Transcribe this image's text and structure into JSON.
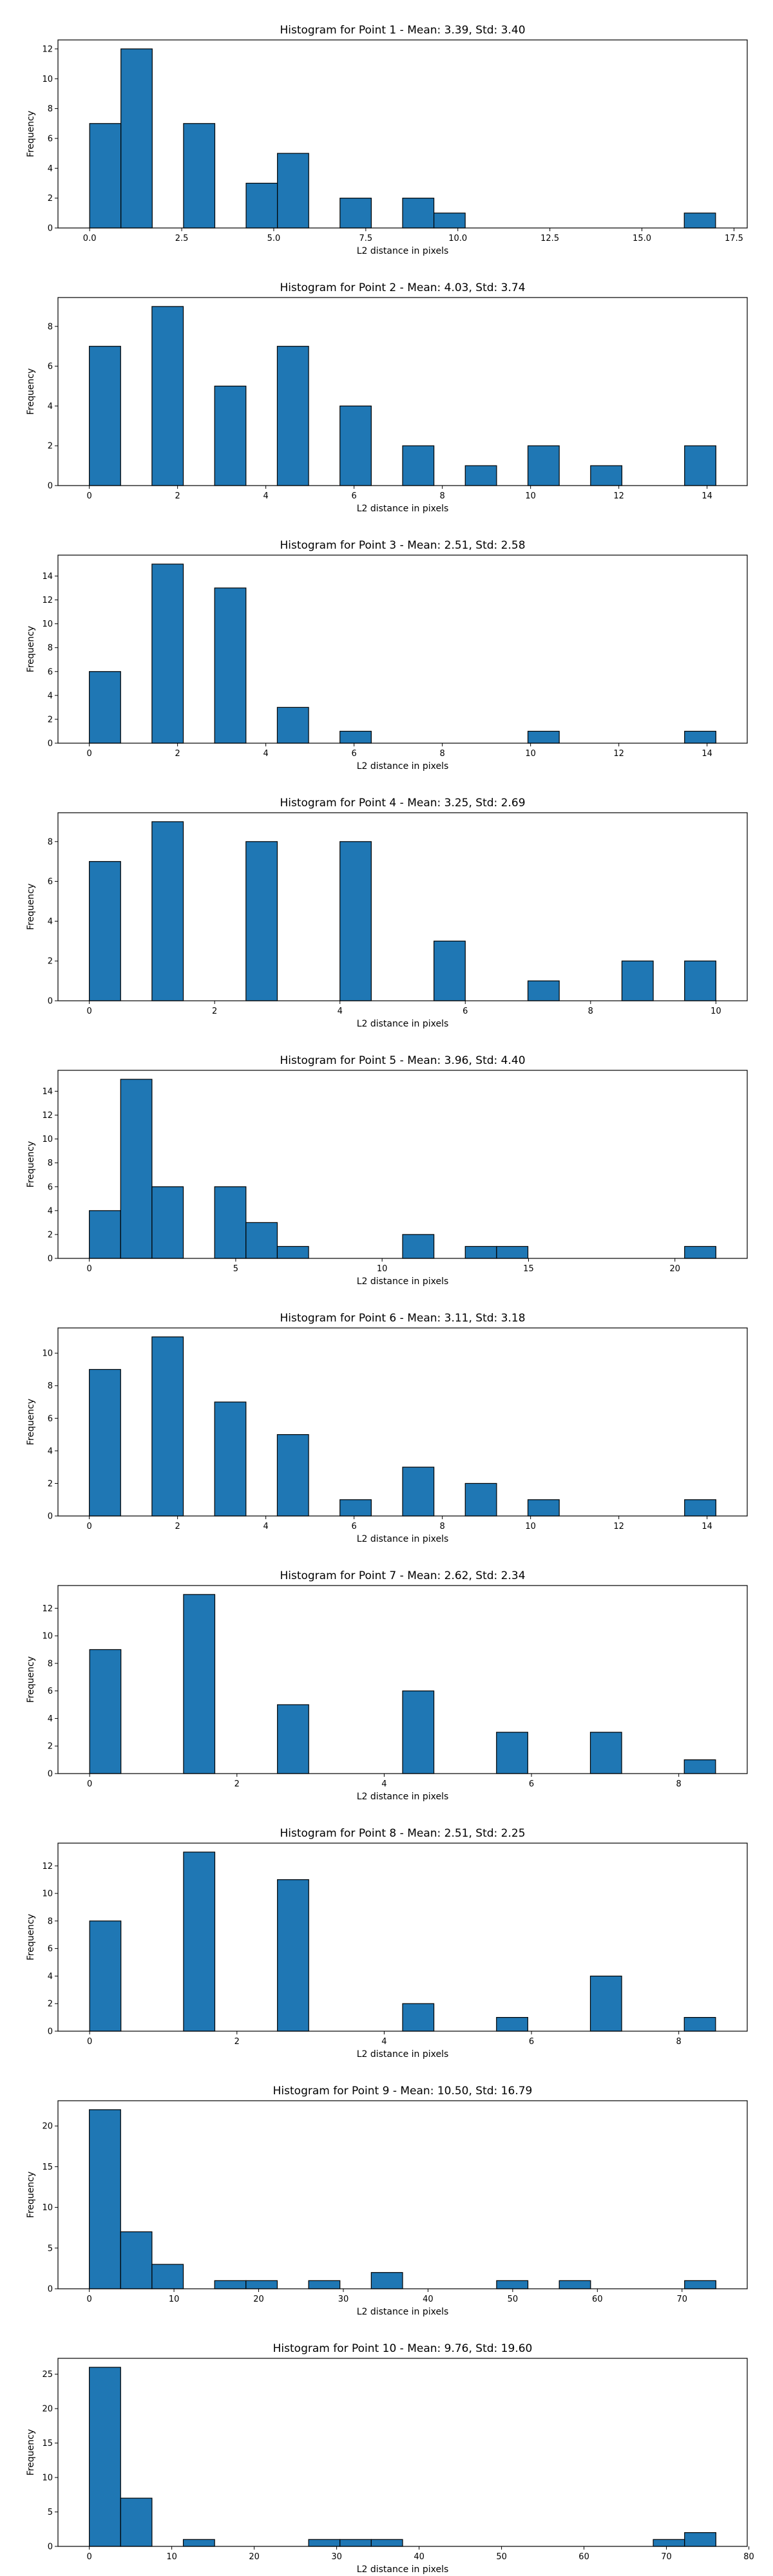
{
  "chart_data": [
    {
      "type": "bar",
      "title": "Histogram for Point 1 - Mean: 3.39, Std: 3.40",
      "xlabel": "L2 distance in pixels",
      "ylabel": "Frequency",
      "xlim": [
        -0.86,
        17.86
      ],
      "ylim": [
        0,
        12.6
      ],
      "xticks": [
        0,
        2.5,
        5,
        7.5,
        10,
        12.5,
        15,
        17.5
      ],
      "xtick_labels": [
        "0.0",
        "2.5",
        "5.0",
        "7.5",
        "10.0",
        "12.5",
        "15.0",
        "17.5"
      ],
      "yticks": [
        0,
        2,
        4,
        6,
        8,
        10,
        12
      ],
      "bin_edges": [
        0,
        0.85,
        1.7,
        2.55,
        3.4,
        4.25,
        5.1,
        5.95,
        6.8,
        7.65,
        8.5,
        9.35,
        10.2,
        11.05,
        11.9,
        12.75,
        13.6,
        14.45,
        15.3,
        16.15,
        17.0
      ],
      "values": [
        7,
        12,
        0,
        7,
        0,
        3,
        5,
        0,
        2,
        0,
        2,
        1,
        0,
        0,
        0,
        0,
        0,
        0,
        0,
        1
      ]
    },
    {
      "type": "bar",
      "title": "Histogram for Point 2 - Mean: 4.03, Std: 3.74",
      "xlabel": "L2 distance in pixels",
      "ylabel": "Frequency",
      "xlim": [
        -0.71,
        14.91
      ],
      "ylim": [
        0,
        9.45
      ],
      "xticks": [
        0,
        2,
        4,
        6,
        8,
        10,
        12,
        14
      ],
      "xtick_labels": [
        "0",
        "2",
        "4",
        "6",
        "8",
        "10",
        "12",
        "14"
      ],
      "yticks": [
        0,
        2,
        4,
        6,
        8
      ],
      "bin_edges": [
        0,
        0.71,
        1.42,
        2.13,
        2.84,
        3.55,
        4.26,
        4.97,
        5.68,
        6.39,
        7.1,
        7.81,
        8.52,
        9.23,
        9.94,
        10.65,
        11.36,
        12.07,
        12.78,
        13.49,
        14.2
      ],
      "values": [
        7,
        0,
        9,
        0,
        5,
        0,
        7,
        0,
        4,
        0,
        2,
        0,
        1,
        0,
        2,
        0,
        1,
        0,
        0,
        2
      ]
    },
    {
      "type": "bar",
      "title": "Histogram for Point 3 - Mean: 2.51, Std: 2.58",
      "xlabel": "L2 distance in pixels",
      "ylabel": "Frequency",
      "xlim": [
        -0.71,
        14.91
      ],
      "ylim": [
        0,
        15.75
      ],
      "xticks": [
        0,
        2,
        4,
        6,
        8,
        10,
        12,
        14
      ],
      "xtick_labels": [
        "0",
        "2",
        "4",
        "6",
        "8",
        "10",
        "12",
        "14"
      ],
      "yticks": [
        0,
        2,
        4,
        6,
        8,
        10,
        12,
        14
      ],
      "bin_edges": [
        0,
        0.71,
        1.42,
        2.13,
        2.84,
        3.55,
        4.26,
        4.97,
        5.68,
        6.39,
        7.1,
        7.81,
        8.52,
        9.23,
        9.94,
        10.65,
        11.36,
        12.07,
        12.78,
        13.49,
        14.2
      ],
      "values": [
        6,
        0,
        15,
        0,
        13,
        0,
        3,
        0,
        1,
        0,
        0,
        0,
        0,
        0,
        1,
        0,
        0,
        0,
        0,
        1
      ]
    },
    {
      "type": "bar",
      "title": "Histogram for Point 4 - Mean: 3.25, Std: 2.69",
      "xlabel": "L2 distance in pixels",
      "ylabel": "Frequency",
      "xlim": [
        -0.5,
        10.5
      ],
      "ylim": [
        0,
        9.45
      ],
      "xticks": [
        0,
        2,
        4,
        6,
        8,
        10
      ],
      "xtick_labels": [
        "0",
        "2",
        "4",
        "6",
        "8",
        "10"
      ],
      "yticks": [
        0,
        2,
        4,
        6,
        8
      ],
      "bin_edges": [
        0,
        0.5,
        1.0,
        1.5,
        2.0,
        2.5,
        3.0,
        3.5,
        4.0,
        4.5,
        5.0,
        5.5,
        6.0,
        6.5,
        7.0,
        7.5,
        8.0,
        8.5,
        9.0,
        9.5,
        10.0
      ],
      "values": [
        7,
        0,
        9,
        0,
        0,
        8,
        0,
        0,
        8,
        0,
        0,
        3,
        0,
        0,
        1,
        0,
        0,
        2,
        0,
        2
      ]
    },
    {
      "type": "bar",
      "title": "Histogram for Point 5 - Mean: 3.96, Std: 4.40",
      "xlabel": "L2 distance in pixels",
      "ylabel": "Frequency",
      "xlim": [
        -1.07,
        22.47
      ],
      "ylim": [
        0,
        15.75
      ],
      "xticks": [
        0,
        5,
        10,
        15,
        20
      ],
      "xtick_labels": [
        "0",
        "5",
        "10",
        "15",
        "20"
      ],
      "yticks": [
        0,
        2,
        4,
        6,
        8,
        10,
        12,
        14
      ],
      "bin_edges": [
        0,
        1.07,
        2.14,
        3.21,
        4.28,
        5.35,
        6.42,
        7.49,
        8.56,
        9.63,
        10.7,
        11.77,
        12.84,
        13.91,
        14.98,
        16.05,
        17.12,
        18.19,
        19.26,
        20.33,
        21.4
      ],
      "values": [
        4,
        15,
        6,
        0,
        6,
        3,
        1,
        0,
        0,
        0,
        2,
        0,
        1,
        1,
        0,
        0,
        0,
        0,
        0,
        1
      ]
    },
    {
      "type": "bar",
      "title": "Histogram for Point 6 - Mean: 3.11, Std: 3.18",
      "xlabel": "L2 distance in pixels",
      "ylabel": "Frequency",
      "xlim": [
        -0.71,
        14.91
      ],
      "ylim": [
        0,
        11.55
      ],
      "xticks": [
        0,
        2,
        4,
        6,
        8,
        10,
        12,
        14
      ],
      "xtick_labels": [
        "0",
        "2",
        "4",
        "6",
        "8",
        "10",
        "12",
        "14"
      ],
      "yticks": [
        0,
        2,
        4,
        6,
        8,
        10
      ],
      "bin_edges": [
        0,
        0.71,
        1.42,
        2.13,
        2.84,
        3.55,
        4.26,
        4.97,
        5.68,
        6.39,
        7.1,
        7.81,
        8.52,
        9.23,
        9.94,
        10.65,
        11.36,
        12.07,
        12.78,
        13.49,
        14.2
      ],
      "values": [
        9,
        0,
        11,
        0,
        7,
        0,
        5,
        0,
        1,
        0,
        3,
        0,
        2,
        0,
        1,
        0,
        0,
        0,
        0,
        1
      ]
    },
    {
      "type": "bar",
      "title": "Histogram for Point 7 - Mean: 2.62, Std: 2.34",
      "xlabel": "L2 distance in pixels",
      "ylabel": "Frequency",
      "xlim": [
        -0.43,
        8.93
      ],
      "ylim": [
        0,
        13.65
      ],
      "xticks": [
        0,
        2,
        4,
        6,
        8
      ],
      "xtick_labels": [
        "0",
        "2",
        "4",
        "6",
        "8"
      ],
      "yticks": [
        0,
        2,
        4,
        6,
        8,
        10,
        12
      ],
      "bin_edges": [
        0,
        0.425,
        0.85,
        1.275,
        1.7,
        2.125,
        2.55,
        2.975,
        3.4,
        3.825,
        4.25,
        4.675,
        5.1,
        5.525,
        5.95,
        6.375,
        6.8,
        7.225,
        7.65,
        8.075,
        8.5
      ],
      "values": [
        9,
        0,
        0,
        13,
        0,
        0,
        5,
        0,
        0,
        0,
        6,
        0,
        0,
        3,
        0,
        0,
        3,
        0,
        0,
        1
      ]
    },
    {
      "type": "bar",
      "title": "Histogram for Point 8 - Mean: 2.51, Std: 2.25",
      "xlabel": "L2 distance in pixels",
      "ylabel": "Frequency",
      "xlim": [
        -0.43,
        8.93
      ],
      "ylim": [
        0,
        13.65
      ],
      "xticks": [
        0,
        2,
        4,
        6,
        8
      ],
      "xtick_labels": [
        "0",
        "2",
        "4",
        "6",
        "8"
      ],
      "yticks": [
        0,
        2,
        4,
        6,
        8,
        10,
        12
      ],
      "bin_edges": [
        0,
        0.425,
        0.85,
        1.275,
        1.7,
        2.125,
        2.55,
        2.975,
        3.4,
        3.825,
        4.25,
        4.675,
        5.1,
        5.525,
        5.95,
        6.375,
        6.8,
        7.225,
        7.65,
        8.075,
        8.5
      ],
      "values": [
        8,
        0,
        0,
        13,
        0,
        0,
        11,
        0,
        0,
        0,
        2,
        0,
        0,
        1,
        0,
        0,
        4,
        0,
        0,
        1
      ]
    },
    {
      "type": "bar",
      "title": "Histogram for Point 9 - Mean: 10.50, Std: 16.79",
      "xlabel": "L2 distance in pixels",
      "ylabel": "Frequency",
      "xlim": [
        -3.7,
        77.7
      ],
      "ylim": [
        0,
        23.1
      ],
      "xticks": [
        0,
        10,
        20,
        30,
        40,
        50,
        60,
        70
      ],
      "xtick_labels": [
        "0",
        "10",
        "20",
        "30",
        "40",
        "50",
        "60",
        "70"
      ],
      "yticks": [
        0,
        5,
        10,
        15,
        20
      ],
      "bin_edges": [
        0,
        3.7,
        7.4,
        11.1,
        14.8,
        18.5,
        22.2,
        25.9,
        29.6,
        33.3,
        37.0,
        40.7,
        44.4,
        48.1,
        51.8,
        55.5,
        59.2,
        62.9,
        66.6,
        70.3,
        74.0
      ],
      "values": [
        22,
        7,
        3,
        0,
        1,
        1,
        0,
        1,
        0,
        2,
        0,
        0,
        0,
        1,
        0,
        1,
        0,
        0,
        0,
        1
      ]
    },
    {
      "type": "bar",
      "title": "Histogram for Point 10 - Mean: 9.76, Std: 19.60",
      "xlabel": "L2 distance in pixels",
      "ylabel": "Frequency",
      "xlim": [
        -3.8,
        79.8
      ],
      "ylim": [
        0,
        27.3
      ],
      "xticks": [
        0,
        10,
        20,
        30,
        40,
        50,
        60,
        70,
        80
      ],
      "xtick_labels": [
        "0",
        "10",
        "20",
        "30",
        "40",
        "50",
        "60",
        "70",
        "80"
      ],
      "yticks": [
        0,
        5,
        10,
        15,
        20,
        25
      ],
      "bin_edges": [
        0,
        3.8,
        7.6,
        11.4,
        15.2,
        19.0,
        22.8,
        26.6,
        30.4,
        34.2,
        38.0,
        41.8,
        45.6,
        49.4,
        53.2,
        57.0,
        60.8,
        64.6,
        68.4,
        72.2,
        76.0
      ],
      "values": [
        26,
        7,
        0,
        1,
        0,
        0,
        0,
        1,
        1,
        1,
        0,
        0,
        0,
        0,
        0,
        0,
        0,
        0,
        1,
        2
      ]
    }
  ],
  "colors": {
    "bar_fill": "#1f77b4",
    "bar_edge": "#000000",
    "axes": "#000000",
    "background": "#ffffff"
  }
}
